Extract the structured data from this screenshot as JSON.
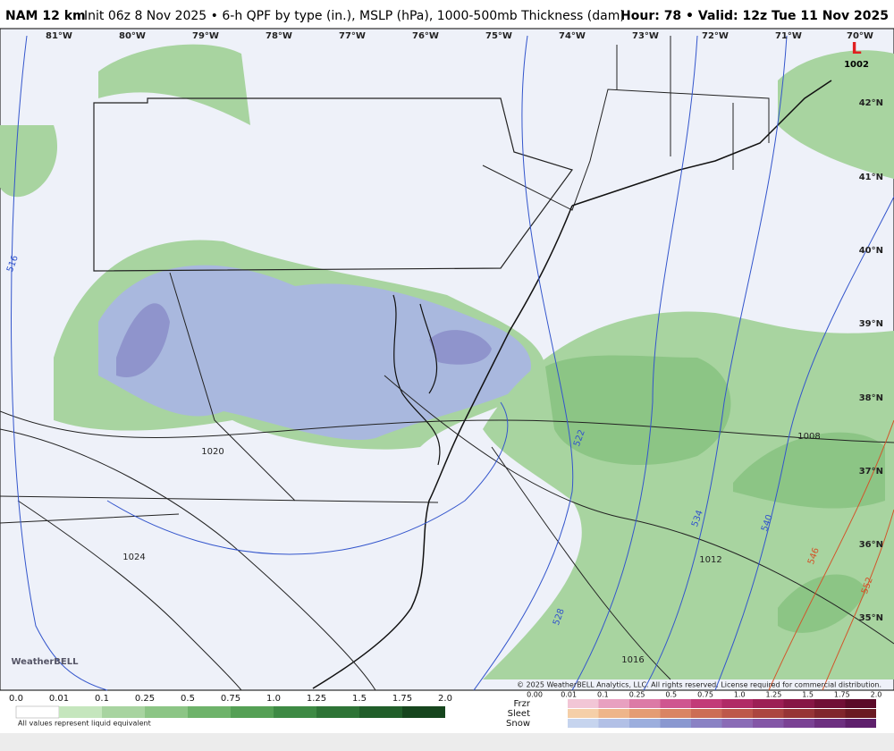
{
  "header": {
    "model": "NAM 12 km",
    "description": "Init 06z 8 Nov 2025 • 6-h QPF by type (in.), MSLP (hPa), 1000-500mb Thickness (dam)",
    "valid": "Hour: 78 • Valid: 12z Tue 11 Nov 2025"
  },
  "map": {
    "longitudes": [
      "81°W",
      "80°W",
      "79°W",
      "78°W",
      "77°W",
      "76°W",
      "75°W",
      "74°W",
      "73°W",
      "72°W",
      "71°W",
      "70°W"
    ],
    "latitudes": [
      "42°N",
      "41°N",
      "40°N",
      "39°N",
      "38°N",
      "37°N",
      "36°N",
      "35°N"
    ],
    "isobar_labels": [
      "1008",
      "1012",
      "1016",
      "1020",
      "1024"
    ],
    "low": {
      "symbol": "L",
      "pressure": "1002"
    },
    "thickness_labels": [
      "516",
      "522",
      "528",
      "534",
      "540",
      "546",
      "552"
    ],
    "logo": "WeatherBELL",
    "copyright": "© 2025 WeatherBELL Analytics, LLC. All rights reserved. License required for commercial distribution."
  },
  "legend": {
    "rain_ticks": [
      "0.0",
      "0.01",
      "0.1",
      "0.25",
      "0.5",
      "0.75",
      "1.0",
      "1.25",
      "1.5",
      "1.75",
      "2.0"
    ],
    "note": "All values represent liquid equivalent",
    "types": [
      "Frzr",
      "Sleet",
      "Snow"
    ],
    "type_ticks": [
      "0.00",
      "0.01",
      "0.1",
      "0.25",
      "0.5",
      "0.75",
      "1.0",
      "1.25",
      "1.5",
      "1.75",
      "2.0"
    ]
  }
}
